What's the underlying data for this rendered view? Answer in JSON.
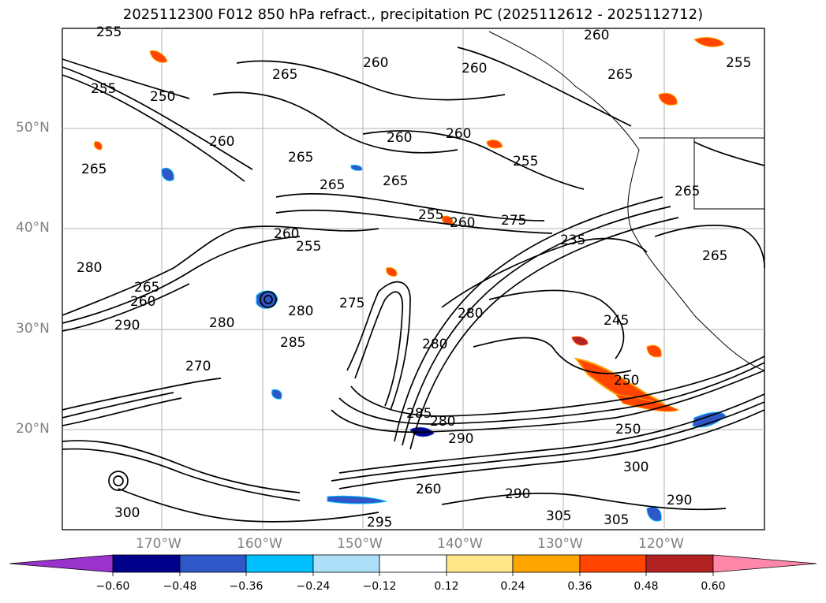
{
  "title": "2025112300 F012 850 hPa refract., precipitation PC (2025112612 - 2025112712)",
  "map": {
    "lat_labels": [
      "50°N",
      "40°N",
      "30°N",
      "20°N"
    ],
    "lon_labels": [
      "170°W",
      "160°W",
      "150°W",
      "140°W",
      "130°W",
      "120°W"
    ],
    "contour_labels": [
      "255",
      "250",
      "260",
      "265",
      "260",
      "265",
      "260",
      "255",
      "260",
      "265",
      "255",
      "260",
      "265",
      "260",
      "265",
      "255",
      "265",
      "265",
      "255",
      "275",
      "235",
      "260",
      "265",
      "255",
      "260",
      "280",
      "265",
      "260",
      "280",
      "290",
      "280",
      "280",
      "275",
      "285",
      "280",
      "270",
      "250",
      "245",
      "280",
      "285",
      "290",
      "250",
      "300",
      "290",
      "305",
      "305",
      "260",
      "295",
      "300",
      "290"
    ],
    "grid_color": "#b0b0b0",
    "contour_color": "#000000"
  },
  "colorbar": {
    "ticks": [
      "−0.60",
      "−0.48",
      "−0.36",
      "−0.24",
      "−0.12",
      "0.12",
      "0.24",
      "0.36",
      "0.48",
      "0.60"
    ],
    "colors": [
      "#9933cc",
      "#7b2fd0",
      "#00008b",
      "#3057c8",
      "#00bfff",
      "#ade0f8",
      "#ffffff",
      "#ffe88a",
      "#ffa500",
      "#ff4500",
      "#b22222",
      "#ff88aa"
    ]
  }
}
